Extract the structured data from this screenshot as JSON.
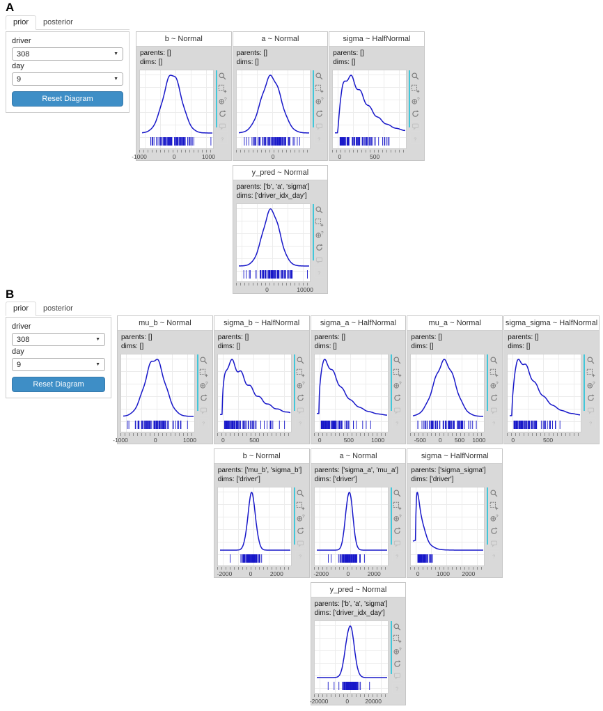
{
  "colors": {
    "curve": "#1717c9",
    "accent": "#41c7da",
    "button": "#3e8ec6",
    "card_bg": "#d9d9d9"
  },
  "toolbar_icons": [
    {
      "name": "box-zoom-icon",
      "glyph": "magnifier",
      "disabled": false
    },
    {
      "name": "zoom-in-icon",
      "glyph": "box-plus",
      "disabled": false
    },
    {
      "name": "wheel-zoom-icon",
      "glyph": "circle-question",
      "disabled": false
    },
    {
      "name": "reset-icon",
      "glyph": "refresh",
      "disabled": false
    },
    {
      "name": "hover-icon",
      "glyph": "speech-bubble",
      "disabled": true
    },
    {
      "name": "help-icon",
      "glyph": "question-box",
      "disabled": true
    }
  ],
  "panels": [
    {
      "label": "A",
      "tabs": [
        {
          "label": "prior",
          "active": true
        },
        {
          "label": "posterior",
          "active": false
        }
      ],
      "controls": {
        "driver_label": "driver",
        "driver_value": "308",
        "day_label": "day",
        "day_value": "9",
        "reset_button": "Reset Diagram"
      },
      "rows": [
        {
          "cards": [
            {
              "title": "b ~ Normal",
              "parents": "parents: []",
              "dims": "dims: []",
              "shape": {
                "type": "normal",
                "mu": 0.43,
                "sigma": 0.13,
                "wig": 0.03
              },
              "ticks": [
                {
                  "pos": 0.0,
                  "label": "-1000"
                },
                {
                  "pos": 0.47,
                  "label": "0"
                },
                {
                  "pos": 0.93,
                  "label": "1000"
                }
              ]
            },
            {
              "title": "a ~ Normal",
              "parents": "parents: []",
              "dims": "dims: []",
              "shape": {
                "type": "normal",
                "mu": 0.46,
                "sigma": 0.14,
                "wig": 0.03
              },
              "ticks": [
                {
                  "pos": 0.5,
                  "label": "0"
                }
              ]
            },
            {
              "title": "sigma ~ HalfNormal",
              "parents": "parents: []",
              "dims": "dims: []",
              "shape": {
                "type": "halfnormal",
                "a": 1.9,
                "tau": 0.17,
                "x0": 0.04,
                "wig": 0.06
              },
              "ticks": [
                {
                  "pos": 0.1,
                  "label": "0"
                },
                {
                  "pos": 0.57,
                  "label": "500"
                }
              ]
            }
          ]
        },
        {
          "cards": [
            {
              "title": "y_pred ~ Normal",
              "parents": "parents: ['b', 'a', 'sigma']",
              "dims": "dims: ['driver_idx_day']",
              "shape": {
                "type": "normal",
                "mu": 0.46,
                "sigma": 0.12,
                "wig": 0.03
              },
              "ticks": [
                {
                  "pos": 0.42,
                  "label": "0"
                },
                {
                  "pos": 0.93,
                  "label": "10000"
                }
              ]
            }
          ]
        }
      ]
    },
    {
      "label": "B",
      "tabs": [
        {
          "label": "prior",
          "active": true
        },
        {
          "label": "posterior",
          "active": false
        }
      ],
      "controls": {
        "driver_label": "driver",
        "driver_value": "308",
        "day_label": "day",
        "day_value": "9",
        "reset_button": "Reset Diagram"
      },
      "rows": [
        {
          "cards": [
            {
              "title": "mu_b ~ Normal",
              "parents": "parents: []",
              "dims": "dims: []",
              "shape": {
                "type": "normal",
                "mu": 0.45,
                "sigma": 0.14,
                "wig": 0.04
              },
              "ticks": [
                {
                  "pos": 0.0,
                  "label": "-1000"
                },
                {
                  "pos": 0.47,
                  "label": "0"
                },
                {
                  "pos": 0.93,
                  "label": "1000"
                }
              ]
            },
            {
              "title": "sigma_b ~ HalfNormal",
              "parents": "parents: []",
              "dims": "dims: []",
              "shape": {
                "type": "halfnormal",
                "a": 1.55,
                "tau": 0.22,
                "x0": 0.03,
                "wig": 0.07
              },
              "ticks": [
                {
                  "pos": 0.08,
                  "label": "0"
                },
                {
                  "pos": 0.5,
                  "label": "500"
                }
              ]
            },
            {
              "title": "sigma_a ~ HalfNormal",
              "parents": "parents: []",
              "dims": "dims: []",
              "shape": {
                "type": "halfnormal",
                "a": 1.5,
                "tau": 0.18,
                "x0": 0.03,
                "wig": 0.05
              },
              "ticks": [
                {
                  "pos": 0.08,
                  "label": "0"
                },
                {
                  "pos": 0.47,
                  "label": "500"
                },
                {
                  "pos": 0.86,
                  "label": "1000"
                }
              ]
            },
            {
              "title": "mu_a ~ Normal",
              "parents": "parents: []",
              "dims": "dims: []",
              "shape": {
                "type": "normal",
                "mu": 0.45,
                "sigma": 0.15,
                "wig": 0.04
              },
              "ticks": [
                {
                  "pos": 0.13,
                  "label": "-500"
                },
                {
                  "pos": 0.4,
                  "label": "0"
                },
                {
                  "pos": 0.66,
                  "label": "500"
                },
                {
                  "pos": 0.92,
                  "label": "1000"
                }
              ]
            },
            {
              "title": "sigma_sigma ~ HalfNormal",
              "parents": "parents: []",
              "dims": "dims: []",
              "shape": {
                "type": "halfnormal",
                "a": 1.7,
                "tau": 0.17,
                "x0": 0.03,
                "wig": 0.05
              },
              "ticks": [
                {
                  "pos": 0.08,
                  "label": "0"
                },
                {
                  "pos": 0.55,
                  "label": "500"
                }
              ]
            }
          ]
        },
        {
          "cards": [
            {
              "title": "b ~ Normal",
              "parents": "parents: ['mu_b', 'sigma_b']",
              "dims": "dims: ['driver']",
              "shape": {
                "type": "normal",
                "mu": 0.45,
                "sigma": 0.055,
                "wig": 0.03
              },
              "ticks": [
                {
                  "pos": 0.1,
                  "label": "-2000"
                },
                {
                  "pos": 0.45,
                  "label": "0"
                },
                {
                  "pos": 0.8,
                  "label": "2000"
                }
              ]
            },
            {
              "title": "a ~ Normal",
              "parents": "parents: ['sigma_a', 'mu_a']",
              "dims": "dims: ['driver']",
              "shape": {
                "type": "normal",
                "mu": 0.46,
                "sigma": 0.05,
                "wig": 0.03
              },
              "ticks": [
                {
                  "pos": 0.1,
                  "label": "-2000"
                },
                {
                  "pos": 0.46,
                  "label": "0"
                },
                {
                  "pos": 0.81,
                  "label": "2000"
                }
              ]
            },
            {
              "title": "sigma ~ HalfNormal",
              "parents": "parents: ['sigma_sigma']",
              "dims": "dims: ['driver']",
              "shape": {
                "type": "halfnormal",
                "a": 1.4,
                "tau": 0.06,
                "x0": 0.04,
                "wig": 0.05
              },
              "ticks": [
                {
                  "pos": 0.1,
                  "label": "0"
                },
                {
                  "pos": 0.44,
                  "label": "1000"
                },
                {
                  "pos": 0.78,
                  "label": "2000"
                }
              ]
            }
          ]
        },
        {
          "cards": [
            {
              "title": "y_pred ~ Normal",
              "parents": "parents: ['b', 'a', 'sigma']",
              "dims": "dims: ['driver_idx_day']",
              "shape": {
                "type": "normal",
                "mu": 0.47,
                "sigma": 0.06,
                "wig": 0.03
              },
              "ticks": [
                {
                  "pos": 0.07,
                  "label": "-20000"
                },
                {
                  "pos": 0.45,
                  "label": "0"
                },
                {
                  "pos": 0.8,
                  "label": "20000"
                }
              ]
            }
          ]
        }
      ]
    }
  ]
}
